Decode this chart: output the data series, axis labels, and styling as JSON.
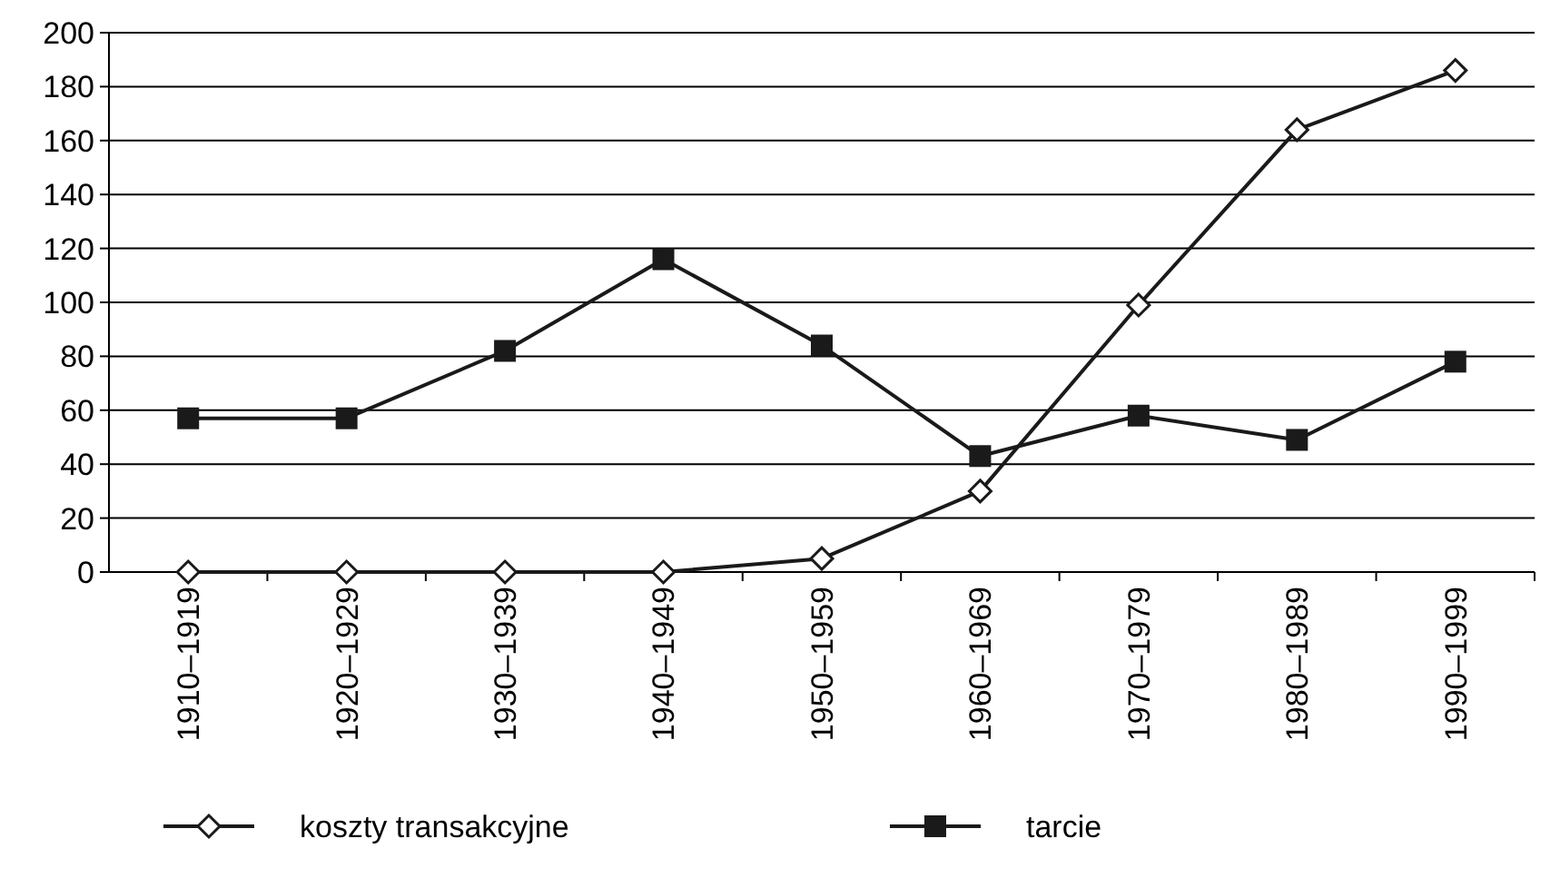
{
  "chart_data": {
    "type": "line",
    "categories": [
      "1910–1919",
      "1920–1929",
      "1930–1939",
      "1940–1949",
      "1950–1959",
      "1960–1969",
      "1970–1979",
      "1980–1989",
      "1990–1999"
    ],
    "series": [
      {
        "name": "koszty transakcyjne",
        "color": "#1a1a1a",
        "marker": "diamond",
        "values": [
          0,
          0,
          0,
          0,
          5,
          30,
          99,
          164,
          186
        ]
      },
      {
        "name": "tarcie",
        "color": "#1a1a1a",
        "marker": "square",
        "values": [
          57,
          57,
          82,
          116,
          84,
          43,
          58,
          49,
          78
        ]
      }
    ],
    "ylim": [
      0,
      200
    ],
    "yticks": [
      0,
      20,
      40,
      60,
      80,
      100,
      120,
      140,
      160,
      180,
      200
    ],
    "grid": "y",
    "legend": "bottom",
    "line_style": "solid"
  }
}
